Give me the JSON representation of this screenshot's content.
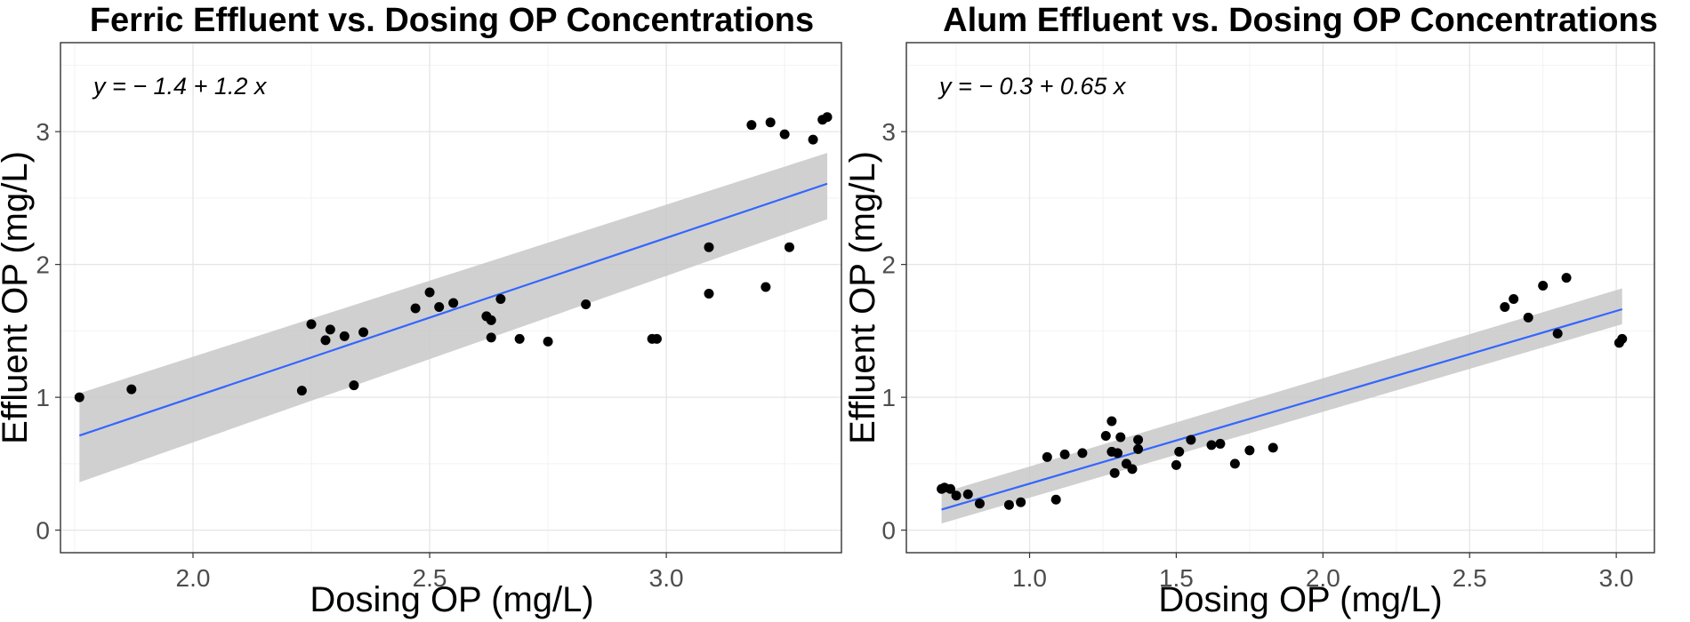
{
  "chart_data": [
    {
      "type": "scatter",
      "title": "Ferric Effluent vs. Dosing OP Concentrations",
      "xlabel": "Dosing OP (mg/L)",
      "ylabel": "Effluent OP (mg/L)",
      "xlim": [
        1.72,
        3.37
      ],
      "ylim": [
        -0.17,
        3.67
      ],
      "xticks": [
        2.0,
        2.5,
        3.0
      ],
      "xtick_labels": [
        "2.0",
        "2.5",
        "3.0"
      ],
      "yticks": [
        0,
        1,
        2,
        3
      ],
      "ytick_labels": [
        "0",
        "1",
        "2",
        "3"
      ],
      "grid": true,
      "annotation": "y = − 1.4 + 1.2 x",
      "fit": {
        "intercept": -1.4,
        "slope": 1.2,
        "x_range": [
          1.76,
          3.34
        ],
        "band_low": [
          0.36,
          2.34
        ],
        "band_high": [
          1.03,
          2.84
        ],
        "color": "#3366FF"
      },
      "points": [
        [
          1.76,
          1.0
        ],
        [
          1.87,
          1.06
        ],
        [
          2.23,
          1.05
        ],
        [
          2.25,
          1.55
        ],
        [
          2.28,
          1.43
        ],
        [
          2.29,
          1.51
        ],
        [
          2.32,
          1.46
        ],
        [
          2.34,
          1.09
        ],
        [
          2.36,
          1.49
        ],
        [
          2.47,
          1.67
        ],
        [
          2.5,
          1.79
        ],
        [
          2.52,
          1.68
        ],
        [
          2.55,
          1.71
        ],
        [
          2.62,
          1.61
        ],
        [
          2.63,
          1.58
        ],
        [
          2.63,
          1.45
        ],
        [
          2.65,
          1.74
        ],
        [
          2.69,
          1.44
        ],
        [
          2.75,
          1.42
        ],
        [
          2.83,
          1.7
        ],
        [
          2.97,
          1.44
        ],
        [
          2.98,
          1.44
        ],
        [
          3.09,
          2.13
        ],
        [
          3.09,
          1.78
        ],
        [
          3.18,
          3.05
        ],
        [
          3.21,
          1.83
        ],
        [
          3.22,
          3.07
        ],
        [
          3.25,
          2.98
        ],
        [
          3.26,
          2.13
        ],
        [
          3.31,
          2.94
        ],
        [
          3.33,
          3.09
        ],
        [
          3.34,
          3.11
        ]
      ]
    },
    {
      "type": "scatter",
      "title": "Alum Effluent vs. Dosing OP Concentrations",
      "xlabel": "Dosing OP (mg/L)",
      "ylabel": "Effluent OP (mg/L)",
      "xlim": [
        0.58,
        3.13
      ],
      "ylim": [
        -0.17,
        3.67
      ],
      "xticks": [
        1.0,
        1.5,
        2.0,
        2.5,
        3.0
      ],
      "xtick_labels": [
        "1.0",
        "1.5",
        "2.0",
        "2.5",
        "3.0"
      ],
      "yticks": [
        0,
        1,
        2,
        3
      ],
      "ytick_labels": [
        "0",
        "1",
        "2",
        "3"
      ],
      "grid": true,
      "annotation": "y = − 0.3 + 0.65 x",
      "fit": {
        "intercept": -0.3,
        "slope": 0.65,
        "x_range": [
          0.7,
          3.02
        ],
        "band_low": [
          0.05,
          1.55
        ],
        "band_high": [
          0.28,
          1.82
        ],
        "color": "#3366FF"
      },
      "points": [
        [
          0.7,
          0.31
        ],
        [
          0.71,
          0.32
        ],
        [
          0.73,
          0.31
        ],
        [
          0.75,
          0.26
        ],
        [
          0.79,
          0.27
        ],
        [
          0.83,
          0.2
        ],
        [
          0.93,
          0.19
        ],
        [
          0.97,
          0.21
        ],
        [
          1.06,
          0.55
        ],
        [
          1.09,
          0.23
        ],
        [
          1.12,
          0.57
        ],
        [
          1.18,
          0.58
        ],
        [
          1.26,
          0.71
        ],
        [
          1.28,
          0.59
        ],
        [
          1.28,
          0.82
        ],
        [
          1.29,
          0.43
        ],
        [
          1.3,
          0.58
        ],
        [
          1.31,
          0.7
        ],
        [
          1.33,
          0.5
        ],
        [
          1.35,
          0.46
        ],
        [
          1.37,
          0.61
        ],
        [
          1.37,
          0.68
        ],
        [
          1.5,
          0.49
        ],
        [
          1.51,
          0.59
        ],
        [
          1.55,
          0.68
        ],
        [
          1.62,
          0.64
        ],
        [
          1.65,
          0.65
        ],
        [
          1.7,
          0.5
        ],
        [
          1.75,
          0.6
        ],
        [
          1.83,
          0.62
        ],
        [
          2.62,
          1.68
        ],
        [
          2.65,
          1.74
        ],
        [
          2.7,
          1.6
        ],
        [
          2.75,
          1.84
        ],
        [
          2.8,
          1.48
        ],
        [
          2.83,
          1.9
        ],
        [
          3.01,
          1.41
        ],
        [
          3.02,
          1.44
        ]
      ]
    }
  ]
}
